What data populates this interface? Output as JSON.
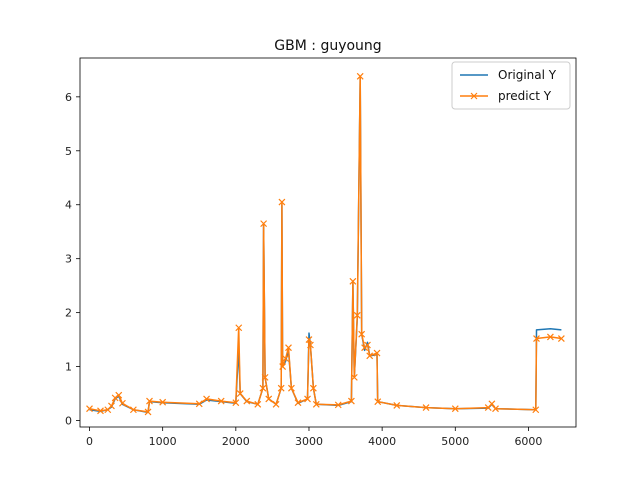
{
  "chart_data": {
    "type": "line",
    "title": "GBM : guyoung",
    "xlabel": "",
    "ylabel": "",
    "xlim": [
      -130,
      6650
    ],
    "ylim": [
      -0.12,
      6.72
    ],
    "xticks": [
      0,
      1000,
      2000,
      3000,
      4000,
      5000,
      6000
    ],
    "xtick_labels": [
      "0",
      "1000",
      "2000",
      "3000",
      "4000",
      "5000",
      "6000"
    ],
    "yticks": [
      0,
      1,
      2,
      3,
      4,
      5,
      6
    ],
    "ytick_labels": [
      "0",
      "1",
      "2",
      "3",
      "4",
      "5",
      "6"
    ],
    "grid": false,
    "legend_position": "top-right",
    "colors": {
      "original": "#1f77b4",
      "predict": "#ff7f0e"
    },
    "series": [
      {
        "name": "Original Y",
        "marker": "none",
        "points": [
          [
            0,
            0.2
          ],
          [
            150,
            0.17
          ],
          [
            250,
            0.2
          ],
          [
            300,
            0.25
          ],
          [
            350,
            0.4
          ],
          [
            400,
            0.45
          ],
          [
            450,
            0.3
          ],
          [
            600,
            0.2
          ],
          [
            800,
            0.15
          ],
          [
            820,
            0.35
          ],
          [
            1000,
            0.33
          ],
          [
            1500,
            0.3
          ],
          [
            1600,
            0.38
          ],
          [
            1800,
            0.35
          ],
          [
            2000,
            0.32
          ],
          [
            2040,
            1.35
          ],
          [
            2060,
            0.5
          ],
          [
            2150,
            0.35
          ],
          [
            2300,
            0.3
          ],
          [
            2370,
            0.6
          ],
          [
            2380,
            3.65
          ],
          [
            2400,
            0.8
          ],
          [
            2450,
            0.4
          ],
          [
            2550,
            0.3
          ],
          [
            2620,
            0.6
          ],
          [
            2630,
            4.0
          ],
          [
            2640,
            1.0
          ],
          [
            2680,
            1.1
          ],
          [
            2720,
            1.3
          ],
          [
            2760,
            0.6
          ],
          [
            2850,
            0.32
          ],
          [
            2980,
            0.4
          ],
          [
            3000,
            1.62
          ],
          [
            3020,
            1.4
          ],
          [
            3060,
            0.6
          ],
          [
            3100,
            0.3
          ],
          [
            3400,
            0.28
          ],
          [
            3580,
            0.35
          ],
          [
            3600,
            2.55
          ],
          [
            3620,
            0.8
          ],
          [
            3660,
            1.9
          ],
          [
            3700,
            6.35
          ],
          [
            3720,
            1.6
          ],
          [
            3760,
            1.3
          ],
          [
            3800,
            1.45
          ],
          [
            3830,
            1.2
          ],
          [
            3930,
            1.22
          ],
          [
            3940,
            0.35
          ],
          [
            4200,
            0.28
          ],
          [
            4600,
            0.24
          ],
          [
            5000,
            0.22
          ],
          [
            5450,
            0.23
          ],
          [
            5500,
            0.3
          ],
          [
            5550,
            0.22
          ],
          [
            6100,
            0.2
          ],
          [
            6110,
            1.68
          ],
          [
            6300,
            1.7
          ],
          [
            6450,
            1.68
          ]
        ]
      },
      {
        "name": "predict Y",
        "marker": "x",
        "points": [
          [
            0,
            0.22
          ],
          [
            150,
            0.18
          ],
          [
            250,
            0.2
          ],
          [
            300,
            0.27
          ],
          [
            350,
            0.42
          ],
          [
            400,
            0.47
          ],
          [
            450,
            0.32
          ],
          [
            600,
            0.2
          ],
          [
            800,
            0.16
          ],
          [
            820,
            0.36
          ],
          [
            1000,
            0.34
          ],
          [
            1500,
            0.31
          ],
          [
            1600,
            0.4
          ],
          [
            1800,
            0.36
          ],
          [
            2000,
            0.33
          ],
          [
            2040,
            1.72
          ],
          [
            2060,
            0.5
          ],
          [
            2150,
            0.36
          ],
          [
            2300,
            0.3
          ],
          [
            2370,
            0.6
          ],
          [
            2380,
            3.65
          ],
          [
            2400,
            0.8
          ],
          [
            2450,
            0.4
          ],
          [
            2550,
            0.3
          ],
          [
            2620,
            0.6
          ],
          [
            2630,
            4.05
          ],
          [
            2640,
            1.0
          ],
          [
            2680,
            1.15
          ],
          [
            2720,
            1.35
          ],
          [
            2760,
            0.6
          ],
          [
            2850,
            0.33
          ],
          [
            2980,
            0.4
          ],
          [
            3000,
            1.5
          ],
          [
            3020,
            1.4
          ],
          [
            3060,
            0.6
          ],
          [
            3100,
            0.3
          ],
          [
            3400,
            0.29
          ],
          [
            3580,
            0.36
          ],
          [
            3600,
            2.58
          ],
          [
            3620,
            0.8
          ],
          [
            3660,
            1.95
          ],
          [
            3700,
            6.38
          ],
          [
            3720,
            1.6
          ],
          [
            3760,
            1.35
          ],
          [
            3800,
            1.4
          ],
          [
            3830,
            1.2
          ],
          [
            3930,
            1.25
          ],
          [
            3940,
            0.35
          ],
          [
            4200,
            0.28
          ],
          [
            4600,
            0.24
          ],
          [
            5000,
            0.22
          ],
          [
            5450,
            0.24
          ],
          [
            5500,
            0.31
          ],
          [
            5550,
            0.22
          ],
          [
            6100,
            0.2
          ],
          [
            6110,
            1.52
          ],
          [
            6300,
            1.55
          ],
          [
            6450,
            1.52
          ]
        ]
      }
    ]
  }
}
